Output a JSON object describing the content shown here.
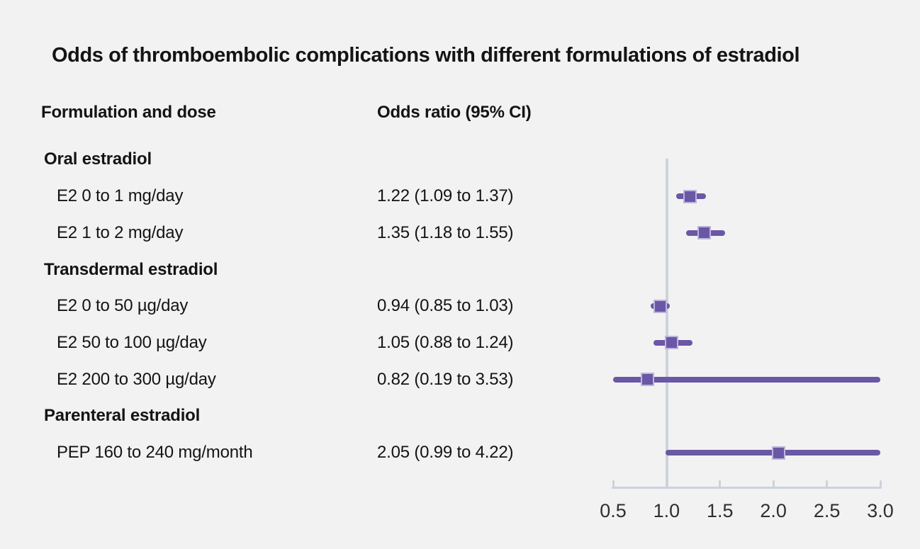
{
  "page": {
    "background": "#f2f2f2"
  },
  "title": "Odds of thromboembolic complications with different formulations of estradiol",
  "columns": {
    "left": "Formulation and dose",
    "right": "Odds ratio (95% CI)"
  },
  "colors": {
    "background": "#f2f2f2",
    "marker": "#6a57a6",
    "marker_edge": "#bdb5db",
    "axis": "#ccd2dd",
    "text": "#141414",
    "tick_text": "#2f2f2f"
  },
  "chart_data": {
    "type": "forest",
    "title": "Odds of thromboembolic complications with different formulations of estradiol",
    "xlabel": "",
    "x_axis": {
      "min": 0.5,
      "max": 3.0,
      "ticks": [
        "0.5",
        "1.0",
        "1.5",
        "2.0",
        "2.5",
        "3.0"
      ],
      "tick_values": [
        0.5,
        1.0,
        1.5,
        2.0,
        2.5,
        3.0
      ],
      "reference_line": 1.0,
      "grid": false
    },
    "rows": [
      {
        "kind": "section",
        "label": "Oral estradiol"
      },
      {
        "kind": "data",
        "label": "E2 0 to 1 mg/day",
        "display": "1.22 (1.09 to 1.37)",
        "or": 1.22,
        "lo": 1.09,
        "hi": 1.37
      },
      {
        "kind": "data",
        "label": "E2 1 to 2 mg/day",
        "display": "1.35 (1.18 to 1.55)",
        "or": 1.35,
        "lo": 1.18,
        "hi": 1.55
      },
      {
        "kind": "section",
        "label": "Transdermal estradiol"
      },
      {
        "kind": "data",
        "label": "E2 0 to 50 µg/day",
        "display": "0.94 (0.85 to 1.03)",
        "or": 0.94,
        "lo": 0.85,
        "hi": 1.03
      },
      {
        "kind": "data",
        "label": "E2 50 to 100 µg/day",
        "display": "1.05 (0.88 to 1.24)",
        "or": 1.05,
        "lo": 0.88,
        "hi": 1.24
      },
      {
        "kind": "data",
        "label": "E2 200 to 300 µg/day",
        "display": "0.82 (0.19 to 3.53)",
        "or": 0.82,
        "lo": 0.19,
        "hi": 3.53
      },
      {
        "kind": "section",
        "label": "Parenteral estradiol"
      },
      {
        "kind": "data",
        "label": "PEP 160 to 240 mg/month",
        "display": "2.05 (0.99 to 4.22)",
        "or": 2.05,
        "lo": 0.99,
        "hi": 4.22
      }
    ]
  }
}
